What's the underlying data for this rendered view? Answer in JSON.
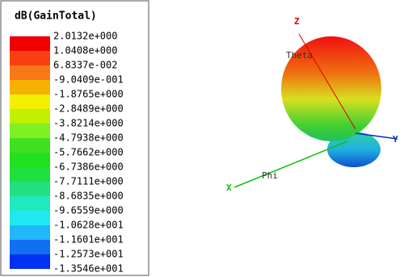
{
  "legend": {
    "title": "dB(GainTotal)",
    "levels": [
      "2.0132e+000",
      "1.0408e+000",
      "6.8337e-002",
      "-9.0409e-001",
      "-1.8765e+000",
      "-2.8489e+000",
      "-3.8214e+000",
      "-4.7938e+000",
      "-5.7662e+000",
      "-6.7386e+000",
      "-7.7111e+000",
      "-8.6835e+000",
      "-9.6559e+000",
      "-1.0628e+001",
      "-1.1601e+001",
      "-1.2573e+001",
      "-1.3546e+001"
    ]
  },
  "axes": {
    "z": "Z",
    "theta": "Theta",
    "y": "Y",
    "x": "X",
    "phi": "Phi"
  }
}
